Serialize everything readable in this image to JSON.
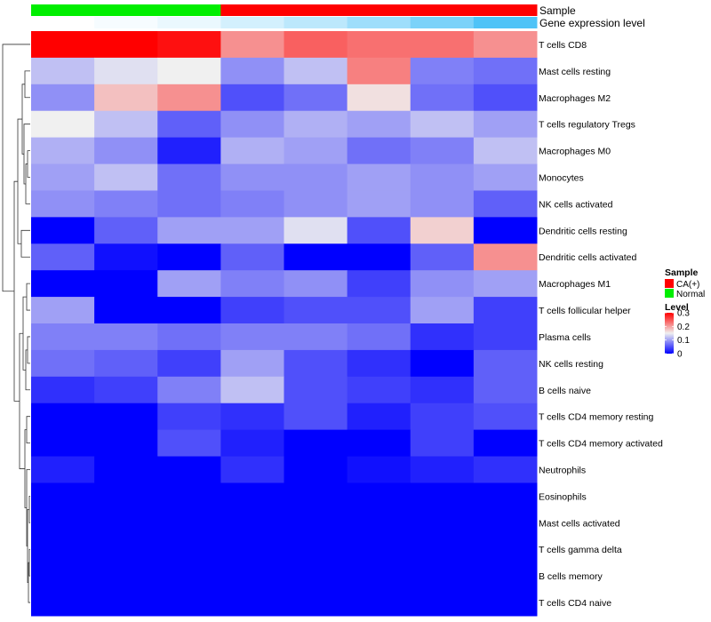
{
  "chart_data": {
    "type": "heatmap",
    "annotation_rows": [
      {
        "label": "Sample",
        "values": [
          "Normal",
          "Normal",
          "Normal",
          "CA(+)",
          "CA(+)",
          "CA(+)",
          "CA(+)",
          "CA(+)"
        ]
      },
      {
        "label": "Gene expression level",
        "values": [
          0.0,
          0.05,
          0.12,
          0.25,
          0.38,
          0.55,
          0.75,
          1.0
        ]
      }
    ],
    "columns": 8,
    "rows": [
      {
        "label": "T cells CD8",
        "values": [
          0.3,
          0.3,
          0.29,
          0.21,
          0.24,
          0.23,
          0.23,
          0.21
        ]
      },
      {
        "label": "Mast cells resting",
        "values": [
          0.12,
          0.14,
          0.15,
          0.09,
          0.12,
          0.22,
          0.08,
          0.07
        ]
      },
      {
        "label": "Macrophages M2",
        "values": [
          0.09,
          0.18,
          0.21,
          0.05,
          0.07,
          0.16,
          0.07,
          0.05
        ]
      },
      {
        "label": "T cells regulatory  Tregs",
        "values": [
          0.15,
          0.12,
          0.06,
          0.09,
          0.11,
          0.1,
          0.12,
          0.1
        ]
      },
      {
        "label": "Macrophages M0",
        "values": [
          0.11,
          0.09,
          0.02,
          0.11,
          0.1,
          0.07,
          0.08,
          0.12
        ]
      },
      {
        "label": "Monocytes",
        "values": [
          0.1,
          0.12,
          0.07,
          0.09,
          0.09,
          0.1,
          0.09,
          0.1
        ]
      },
      {
        "label": "NK cells activated",
        "values": [
          0.09,
          0.08,
          0.07,
          0.08,
          0.09,
          0.1,
          0.09,
          0.06
        ]
      },
      {
        "label": "Dendritic cells resting",
        "values": [
          0.0,
          0.06,
          0.1,
          0.1,
          0.14,
          0.05,
          0.17,
          0.0
        ]
      },
      {
        "label": "Dendritic cells activated",
        "values": [
          0.06,
          0.01,
          0.0,
          0.06,
          0.0,
          0.0,
          0.06,
          0.21
        ]
      },
      {
        "label": "Macrophages M1",
        "values": [
          0.0,
          0.0,
          0.1,
          0.08,
          0.09,
          0.04,
          0.09,
          0.1
        ]
      },
      {
        "label": "T cells follicular helper",
        "values": [
          0.1,
          0.0,
          0.0,
          0.04,
          0.05,
          0.05,
          0.1,
          0.04
        ]
      },
      {
        "label": "Plasma cells",
        "values": [
          0.08,
          0.08,
          0.07,
          0.08,
          0.08,
          0.07,
          0.03,
          0.04
        ]
      },
      {
        "label": "NK cells resting",
        "values": [
          0.07,
          0.06,
          0.04,
          0.1,
          0.05,
          0.03,
          0.0,
          0.06
        ]
      },
      {
        "label": "B cells naive",
        "values": [
          0.03,
          0.04,
          0.08,
          0.12,
          0.05,
          0.04,
          0.03,
          0.06
        ]
      },
      {
        "label": "T cells CD4 memory resting",
        "values": [
          0.0,
          0.0,
          0.04,
          0.03,
          0.05,
          0.02,
          0.04,
          0.05
        ]
      },
      {
        "label": "T cells CD4 memory activated",
        "values": [
          0.0,
          0.0,
          0.05,
          0.02,
          0.0,
          0.0,
          0.04,
          0.0
        ]
      },
      {
        "label": "Neutrophils",
        "values": [
          0.02,
          0.0,
          0.0,
          0.03,
          0.0,
          0.01,
          0.02,
          0.03
        ]
      },
      {
        "label": "Eosinophils",
        "values": [
          0,
          0,
          0,
          0,
          0,
          0,
          0,
          0
        ]
      },
      {
        "label": "Mast cells activated",
        "values": [
          0,
          0,
          0,
          0,
          0,
          0,
          0,
          0
        ]
      },
      {
        "label": "T cells gamma delta",
        "values": [
          0,
          0,
          0,
          0,
          0,
          0,
          0,
          0
        ]
      },
      {
        "label": "B cells memory",
        "values": [
          0,
          0,
          0,
          0,
          0,
          0,
          0,
          0
        ]
      },
      {
        "label": "T cells CD4 naive",
        "values": [
          0,
          0,
          0,
          0,
          0,
          0,
          0,
          0
        ]
      }
    ],
    "color_scale": {
      "min": 0,
      "mid": 0.15,
      "max": 0.3,
      "low": "#0000ff",
      "midcolor": "#f0f0f0",
      "high": "#ff0000"
    },
    "legend": {
      "sample_title": "Sample",
      "sample_items": [
        {
          "label": "CA(+)",
          "color": "#ff0000"
        },
        {
          "label": "Normal",
          "color": "#00ee00"
        }
      ],
      "level_title": "Level",
      "level_ticks": [
        {
          "value": 0.3,
          "label": "0.3"
        },
        {
          "value": 0.2,
          "label": "0.2"
        },
        {
          "value": 0.1,
          "label": "0.1"
        },
        {
          "value": 0,
          "label": "0"
        }
      ]
    },
    "annotation_colors": {
      "Normal": "#00ee00",
      "CA(+)": "#ff0000",
      "expression_low": "#ffffff",
      "expression_high": "#4fc3f7"
    },
    "grid": false,
    "row_dendrogram": true,
    "legend_placement": "right"
  }
}
